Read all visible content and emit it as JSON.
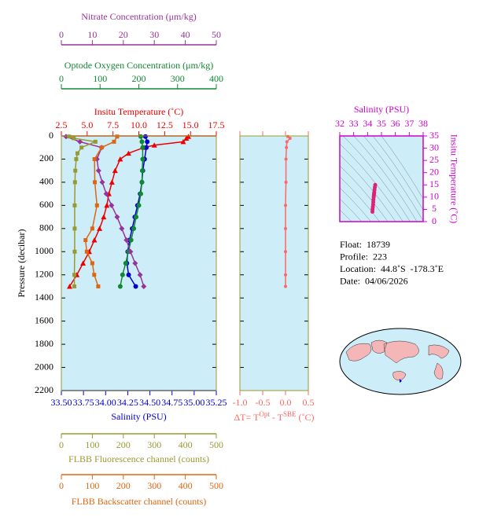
{
  "chart_data": [
    {
      "type": "line",
      "ylabel": "Pressure (decibar)",
      "ylim": [
        0,
        2200
      ],
      "yticks": [
        0,
        200,
        400,
        600,
        800,
        1000,
        1200,
        1400,
        1600,
        1800,
        2000,
        2200
      ],
      "x_axes": [
        {
          "label": "Nitrate Concentration (μm/kg)",
          "xlim": [
            0,
            50
          ],
          "xticks": [
            0,
            10,
            20,
            30,
            40,
            50
          ],
          "color": "#993399"
        },
        {
          "label": "Optode Oxygen Concentration (μm/kg)",
          "xlim": [
            0,
            400
          ],
          "xticks": [
            0,
            100,
            200,
            300,
            400
          ],
          "color": "#118833"
        },
        {
          "label": "Insitu Temperature (˚C)",
          "xlim": [
            2.5,
            17.5
          ],
          "xticks": [
            2.5,
            {
              "value": 5,
              "label": "5.0"
            },
            7.5,
            {
              "value": 10,
              "label": "10.0"
            },
            12.5,
            {
              "value": 15,
              "label": "15.0"
            },
            17.5
          ],
          "color": "#ee0000"
        },
        {
          "label": "Salinity (PSU)",
          "xlim": [
            33.5,
            35.25
          ],
          "xticks": [
            {
              "value": 33.5,
              "label": "33.50"
            },
            33.75,
            {
              "value": 34,
              "label": "34.00"
            },
            34.25,
            {
              "value": 34.5,
              "label": "34.50"
            },
            34.75,
            {
              "value": 35,
              "label": "35.00"
            },
            35.25
          ],
          "color": "#0000cc"
        },
        {
          "label": "FLBB Fluorescence channel (counts)",
          "xlim": [
            0,
            500
          ],
          "xticks": [
            0,
            100,
            200,
            300,
            400,
            500
          ],
          "color": "#999933"
        },
        {
          "label": "FLBB Backscatter channel (counts)",
          "xlim": [
            0,
            500
          ],
          "xticks": [
            0,
            100,
            200,
            300,
            400,
            500
          ],
          "color": "#dd6611"
        }
      ],
      "series": [
        {
          "axis": 2,
          "color": "#ee0000",
          "marker": "triangle",
          "pressure": [
            5,
            20,
            50,
            80,
            100,
            150,
            200,
            300,
            400,
            500,
            600,
            700,
            800,
            900,
            1000,
            1100,
            1200,
            1300
          ],
          "values": [
            14.8,
            14.6,
            14.3,
            11.5,
            10.5,
            9.0,
            8.2,
            7.7,
            7.4,
            7.1,
            6.9,
            6.6,
            6.2,
            5.7,
            5.2,
            4.6,
            4.0,
            3.3
          ]
        },
        {
          "axis": 3,
          "color": "#0000cc",
          "marker": "circle",
          "pressure": [
            5,
            50,
            100,
            200,
            300,
            400,
            500,
            600,
            700,
            800,
            900,
            1000,
            1100,
            1200,
            1300
          ],
          "values": [
            34.45,
            34.47,
            34.46,
            34.44,
            34.42,
            34.41,
            34.39,
            34.36,
            34.33,
            34.3,
            34.27,
            34.25,
            34.24,
            34.26,
            34.34
          ]
        },
        {
          "axis": 1,
          "color": "#118833",
          "marker": "circle",
          "pressure": [
            5,
            50,
            100,
            200,
            300,
            400,
            500,
            600,
            700,
            800,
            900,
            1000,
            1100,
            1200,
            1300
          ],
          "values": [
            205,
            208,
            210,
            210,
            209,
            208,
            205,
            200,
            193,
            187,
            180,
            173,
            166,
            158,
            152
          ]
        },
        {
          "axis": 0,
          "color": "#993399",
          "marker": "diamond",
          "pressure": [
            5,
            50,
            100,
            200,
            300,
            400,
            500,
            600,
            700,
            800,
            900,
            1000,
            1100,
            1200,
            1300
          ],
          "values": [
            1.5,
            6,
            13,
            11.5,
            12,
            13.2,
            14.5,
            16.2,
            18,
            19.5,
            21,
            22.3,
            23.8,
            25.4,
            26.6
          ]
        },
        {
          "axis": 4,
          "color": "#999933",
          "marker": "square",
          "pressure": [
            5,
            20,
            50,
            100,
            150,
            200,
            300,
            400,
            600,
            800,
            1000,
            1200,
            1300
          ],
          "values": [
            25,
            40,
            110,
            65,
            52,
            48,
            45,
            44,
            43,
            43,
            43,
            42,
            42
          ]
        },
        {
          "axis": 5,
          "color": "#dd6611",
          "marker": "square",
          "pressure": [
            5,
            50,
            100,
            200,
            400,
            600,
            800,
            900,
            1000,
            1100,
            1200,
            1300
          ],
          "values": [
            180,
            170,
            130,
            107,
            108,
            115,
            100,
            78,
            82,
            100,
            106,
            119
          ]
        }
      ]
    },
    {
      "type": "line",
      "xlabel_parts": [
        "ΔT= T",
        "Opt",
        " - T",
        "SBE",
        " (˚C)"
      ],
      "xlim": [
        -1,
        0.5
      ],
      "xticks": [
        {
          "value": -1,
          "label": "-1.0"
        },
        -0.5,
        {
          "value": 0,
          "label": "0.0"
        },
        0.5
      ],
      "ylim": [
        0,
        2200
      ],
      "yticks": [
        0,
        200,
        400,
        600,
        800,
        1000,
        1200,
        1400,
        1600,
        1800,
        2000,
        2200
      ],
      "color": "#ff6666",
      "pressure": [
        5,
        20,
        50,
        100,
        200,
        400,
        600,
        800,
        1000,
        1200,
        1300
      ],
      "values": [
        0.05,
        0.1,
        0.03,
        0.02,
        0.01,
        0.01,
        0,
        0,
        0,
        0,
        0
      ]
    },
    {
      "type": "scatter",
      "xlabel": "Salinity (PSU)",
      "ylabel": "Insitu Temperature (˚C)",
      "xlim": [
        32,
        38
      ],
      "xticks": [
        32,
        33,
        34,
        35,
        36,
        37,
        38
      ],
      "ylim": [
        0,
        35
      ],
      "yticks": [
        0,
        5,
        10,
        15,
        20,
        25,
        30,
        35
      ],
      "color": "#dd2277",
      "x": [
        34.55,
        34.52,
        34.5,
        34.48,
        34.47,
        34.46,
        34.45,
        34.44,
        34.42,
        34.41,
        34.4,
        34.38,
        34.36,
        34.35
      ],
      "y": [
        15,
        14,
        13,
        12,
        11.5,
        11,
        10.5,
        10,
        9,
        8,
        7,
        6,
        5,
        4
      ]
    }
  ],
  "float_info": [
    "Float:  18739",
    "Profile:  223",
    "Location:  44.8˚S  -178.3˚E",
    "Date:  04/06/2026"
  ]
}
